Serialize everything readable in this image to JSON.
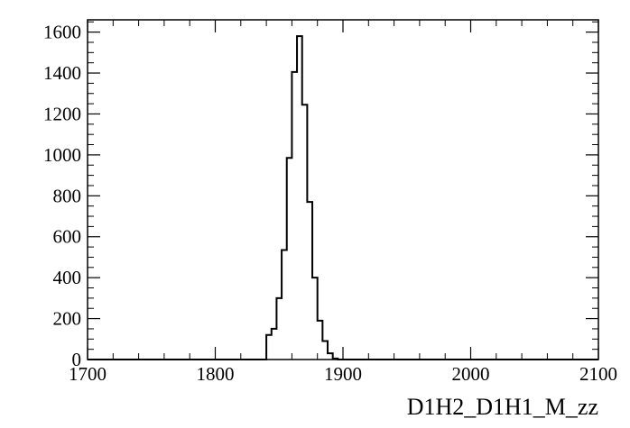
{
  "chart_data": {
    "type": "histogram",
    "xlabel": "D1H2_D1H1_M_zz",
    "ylabel": "",
    "title": "",
    "xlim": [
      1700,
      2100
    ],
    "ylim": [
      0,
      1660
    ],
    "bin_width": 4,
    "x_ticks": [
      1700,
      1800,
      1900,
      2000,
      2100
    ],
    "y_ticks": [
      0,
      200,
      400,
      600,
      800,
      1000,
      1200,
      1400,
      1600
    ],
    "grid": false,
    "bins": [
      {
        "x": 1840,
        "value": 120
      },
      {
        "x": 1844,
        "value": 150
      },
      {
        "x": 1848,
        "value": 300
      },
      {
        "x": 1852,
        "value": 535
      },
      {
        "x": 1856,
        "value": 985
      },
      {
        "x": 1860,
        "value": 1405
      },
      {
        "x": 1864,
        "value": 1580
      },
      {
        "x": 1868,
        "value": 1245
      },
      {
        "x": 1872,
        "value": 770
      },
      {
        "x": 1876,
        "value": 400
      },
      {
        "x": 1880,
        "value": 190
      },
      {
        "x": 1884,
        "value": 90
      },
      {
        "x": 1888,
        "value": 30
      },
      {
        "x": 1892,
        "value": 5
      }
    ]
  }
}
